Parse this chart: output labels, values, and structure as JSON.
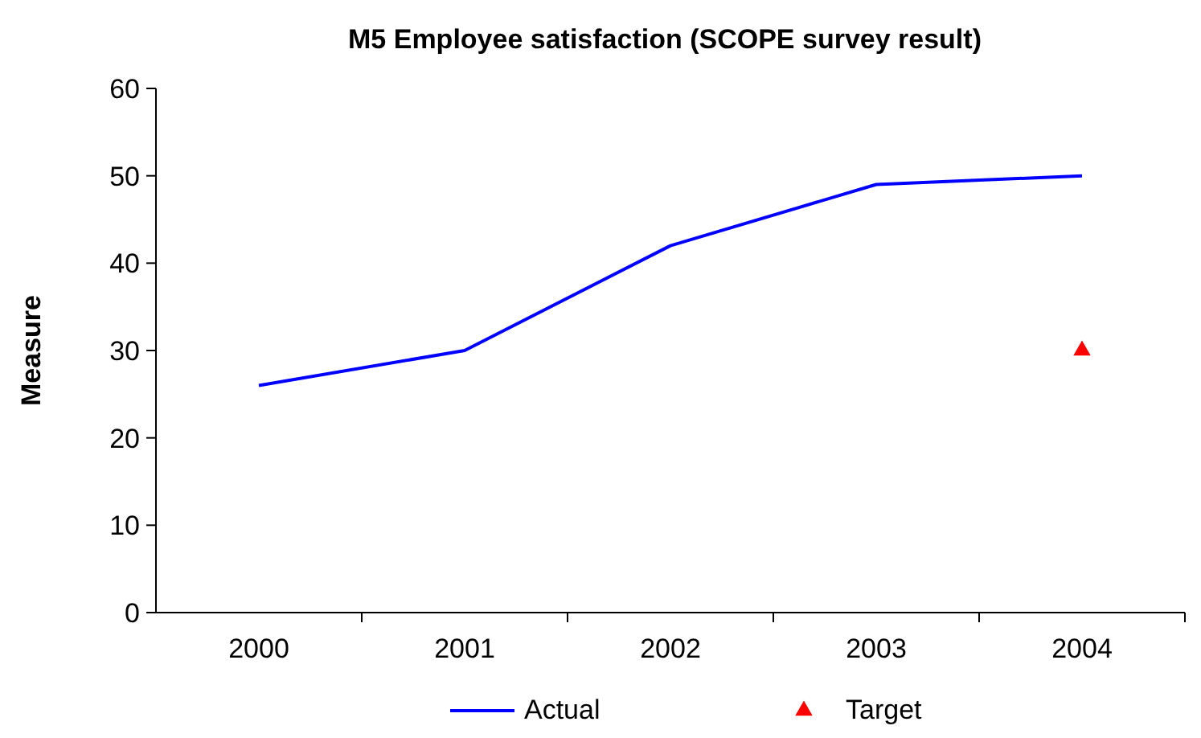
{
  "chart_data": {
    "type": "line",
    "title": "M5 Employee satisfaction (SCOPE survey result)",
    "ylabel": "Measure",
    "categories": [
      "2000",
      "2001",
      "2002",
      "2003",
      "2004"
    ],
    "series": [
      {
        "name": "Actual",
        "color": "#0000ff",
        "values": [
          26,
          30,
          42,
          49,
          50
        ],
        "marker": "none"
      },
      {
        "name": "Target",
        "type": "scatter",
        "color": "#ff0000",
        "values": [
          null,
          null,
          null,
          null,
          30
        ],
        "marker": "triangle"
      }
    ],
    "ylim": [
      0,
      60
    ],
    "yticks": [
      0,
      10,
      20,
      30,
      40,
      50,
      60
    ],
    "grid": false,
    "legend": "bottom"
  }
}
